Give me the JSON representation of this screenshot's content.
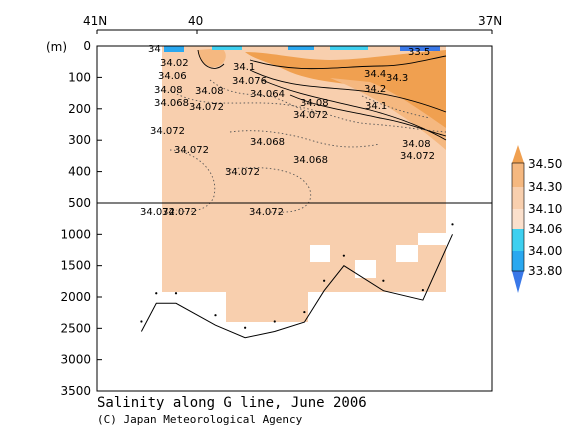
{
  "chart_data": {
    "type": "heatmap",
    "title": "Salinity along G line, June 2006",
    "credit": "(C) Japan Meteorological Agency",
    "y_unit": "(m)",
    "x_ticks": [
      "41N",
      "40",
      "37N"
    ],
    "y_ticks": [
      0,
      100,
      200,
      300,
      400,
      500,
      1000,
      1500,
      2000,
      2500,
      3000,
      3500
    ],
    "colorbar": {
      "levels": [
        "34.50",
        "34.30",
        "34.10",
        "34.06",
        "34.00",
        "33.80"
      ],
      "colors": [
        "#f0a050",
        "#f5b880",
        "#f8cfae",
        "#fbe0cc",
        "#3ed0f0",
        "#2aa8f0",
        "#3a78e8"
      ]
    },
    "contour_labels": [
      "34.072",
      "34.068",
      "34.064",
      "34.076",
      "34.08",
      "34.1",
      "34.2",
      "34.3",
      "34.4",
      "33.5",
      "34",
      "34.02",
      "34.06"
    ],
    "seabed_depth": {
      "lat": [
        40.55,
        40.4,
        40.2,
        39.8,
        39.5,
        39.2,
        38.9,
        38.7,
        38.5,
        38.1,
        37.7,
        37.4
      ],
      "depth_m": [
        2550,
        2100,
        2100,
        2450,
        2650,
        2550,
        2400,
        1900,
        1500,
        1900,
        2050,
        1000
      ]
    }
  }
}
